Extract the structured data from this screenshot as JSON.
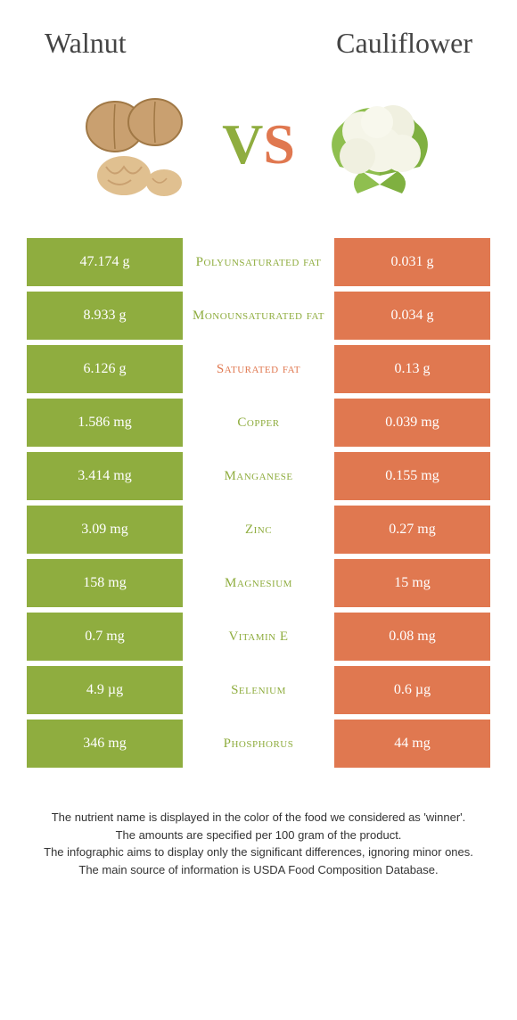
{
  "type": "infographic",
  "titles": {
    "left": "Walnut",
    "right": "Cauliflower"
  },
  "vs": {
    "v": "V",
    "s": "S"
  },
  "colors": {
    "left": "#8fad3f",
    "right": "#e07850",
    "background": "#ffffff",
    "text": "#333333"
  },
  "nutrients": [
    {
      "label": "Polyunsaturated fat",
      "left": "47.174 g",
      "right": "0.031 g",
      "winner": "left"
    },
    {
      "label": "Monounsaturated fat",
      "left": "8.933 g",
      "right": "0.034 g",
      "winner": "left"
    },
    {
      "label": "Saturated fat",
      "left": "6.126 g",
      "right": "0.13 g",
      "winner": "right"
    },
    {
      "label": "Copper",
      "left": "1.586 mg",
      "right": "0.039 mg",
      "winner": "left"
    },
    {
      "label": "Manganese",
      "left": "3.414 mg",
      "right": "0.155 mg",
      "winner": "left"
    },
    {
      "label": "Zinc",
      "left": "3.09 mg",
      "right": "0.27 mg",
      "winner": "left"
    },
    {
      "label": "Magnesium",
      "left": "158 mg",
      "right": "15 mg",
      "winner": "left"
    },
    {
      "label": "Vitamin E",
      "left": "0.7 mg",
      "right": "0.08 mg",
      "winner": "left"
    },
    {
      "label": "Selenium",
      "left": "4.9 µg",
      "right": "0.6 µg",
      "winner": "left"
    },
    {
      "label": "Phosphorus",
      "left": "346 mg",
      "right": "44 mg",
      "winner": "left"
    }
  ],
  "footer": {
    "l1": "The nutrient name is displayed in the color of the food we considered as 'winner'.",
    "l2": "The amounts are specified per 100 gram of the product.",
    "l3": "The infographic aims to display only the significant differences, ignoring minor ones.",
    "l4": "The main source of information is USDA Food Composition Database."
  }
}
